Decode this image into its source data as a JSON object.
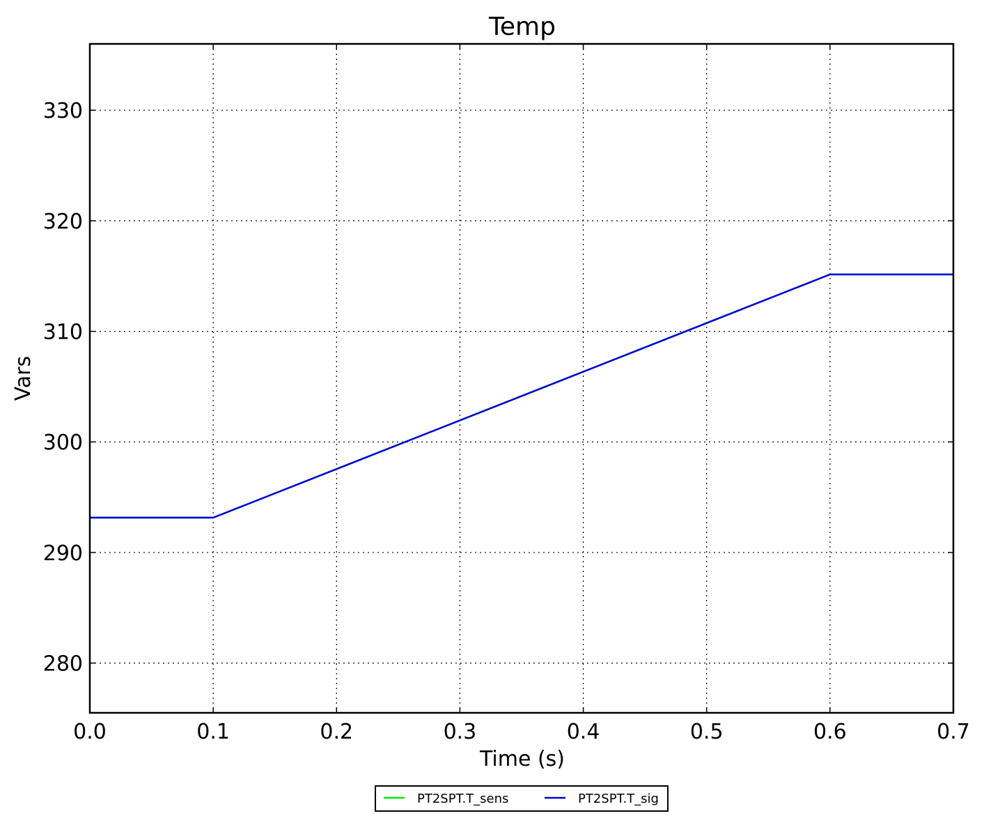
{
  "chart_data": {
    "type": "line",
    "title": "Temp",
    "xlabel": "Time (s)",
    "ylabel": "Vars",
    "xlim": [
      0.0,
      0.7
    ],
    "ylim": [
      275.5,
      336.0
    ],
    "xticks": [
      0.0,
      0.1,
      0.2,
      0.3,
      0.4,
      0.5,
      0.6,
      0.7
    ],
    "xtick_labels": [
      "0.0",
      "0.1",
      "0.2",
      "0.3",
      "0.4",
      "0.5",
      "0.6",
      "0.7"
    ],
    "yticks": [
      280,
      290,
      300,
      310,
      320,
      330
    ],
    "ytick_labels": [
      "280",
      "290",
      "300",
      "310",
      "320",
      "330"
    ],
    "grid": true,
    "legend_position": "bottom-center",
    "series": [
      {
        "name": "PT2SPT.T_sens",
        "color": "#00ee00",
        "x": [
          0.0,
          0.1,
          0.6,
          0.7
        ],
        "y": [
          293.15,
          293.15,
          315.15,
          315.15
        ]
      },
      {
        "name": "PT2SPT.T_sig",
        "color": "#0000dd",
        "x": [
          0.0,
          0.1,
          0.6,
          0.7
        ],
        "y": [
          293.15,
          293.15,
          315.15,
          315.15
        ]
      }
    ]
  }
}
